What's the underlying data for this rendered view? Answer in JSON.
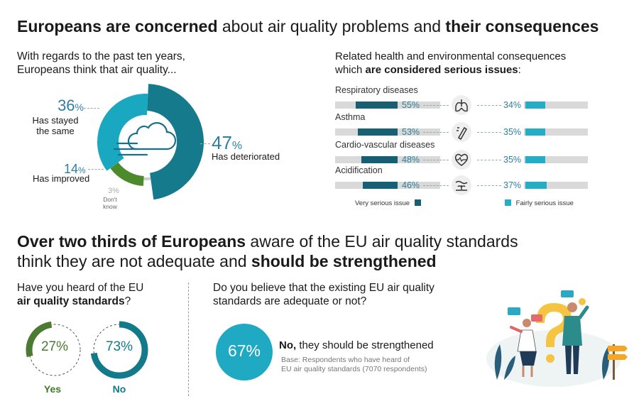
{
  "top_title": {
    "bold1": "Europeans are concerned",
    "normal": " about air quality problems and ",
    "bold2": "their consequences"
  },
  "left_question": {
    "line1": "With regards to the past ten years,",
    "line2": "Europeans think that air quality..."
  },
  "right_question": {
    "line1": "Related health and environmental consequences",
    "line2_normal": "which ",
    "line2_bold": "are considered serious issues",
    "line2_end": ":"
  },
  "donut": {
    "deteriorated": {
      "value": "47",
      "unit": "%",
      "label": "Has deteriorated"
    },
    "same": {
      "value": "36",
      "unit": "%",
      "label1": "Has stayed",
      "label2": "the same"
    },
    "improved": {
      "value": "14",
      "unit": "%",
      "label": "Has improved"
    },
    "dontknow": {
      "value": "3",
      "unit": "%",
      "label1": "Don't",
      "label2": "know"
    }
  },
  "chart_data": [
    {
      "type": "pie",
      "title": "With regards to the past ten years, Europeans think that air quality...",
      "categories": [
        "Has deteriorated",
        "Has stayed the same",
        "Has improved",
        "Don't know"
      ],
      "values": [
        47,
        36,
        14,
        3
      ],
      "colors": [
        "#147a8c",
        "#1aa8c1",
        "#4c8a2c",
        "#cccccc"
      ]
    },
    {
      "type": "bar",
      "title": "Related health and environmental consequences which are considered serious issues:",
      "categories": [
        "Respiratory diseases",
        "Asthma",
        "Cardio-vascular diseases",
        "Acidification"
      ],
      "series": [
        {
          "name": "Very serious issue",
          "values": [
            55,
            53,
            48,
            46
          ],
          "color": "#175f73"
        },
        {
          "name": "Fairly serious issue",
          "values": [
            34,
            35,
            35,
            37
          ],
          "color": "#25adc5"
        }
      ],
      "ylim": [
        0,
        100
      ]
    },
    {
      "type": "pie",
      "title": "Have you heard of the EU air quality standards?",
      "categories": [
        "Yes",
        "No"
      ],
      "values": [
        27,
        73
      ]
    }
  ],
  "bars": {
    "rows": [
      {
        "label": "Respiratory diseases",
        "very_text": "55%",
        "fairly_text": "34%",
        "icon": "lungs-icon"
      },
      {
        "label": "Asthma",
        "very_text": "53%",
        "fairly_text": "35%",
        "icon": "inhaler-icon"
      },
      {
        "label": "Cardio-vascular diseases",
        "very_text": "48%",
        "fairly_text": "35%",
        "icon": "heart-pulse-icon"
      },
      {
        "label": "Acidification",
        "very_text": "46%",
        "fairly_text": "37%",
        "icon": "water-plant-icon"
      }
    ],
    "legend_very": "Very serious issue",
    "legend_fairly": "Fairly serious issue"
  },
  "bottom_title": {
    "line1_bold": "Over two thirds of Europeans",
    "line1_normal": " aware of the EU air quality standards",
    "line2_normal": "think they are not adequate and ",
    "line2_bold": "should be strengthened"
  },
  "heard": {
    "q_line1": "Have you heard of the EU",
    "q_bold": "air quality standards",
    "q_end": "?",
    "yes": {
      "text": "27%",
      "label": "Yes"
    },
    "no": {
      "text": "73%",
      "label": "No"
    }
  },
  "adequate": {
    "q_line1": "Do you believe that the existing EU air quality",
    "q_line2": "standards are adequate or not?",
    "pct": "67%",
    "answer_bold": "No,",
    "answer_rest": " they should be strengthened",
    "base1": "Base: Respondents who have heard of",
    "base2": "EU air quality standards (7070 respondents)"
  },
  "colors": {
    "dark_teal": "#175f73",
    "teal": "#1aa8c1",
    "green": "#4c8a2c",
    "grey": "#cccccc",
    "bar_bg": "#d9d9d9"
  }
}
